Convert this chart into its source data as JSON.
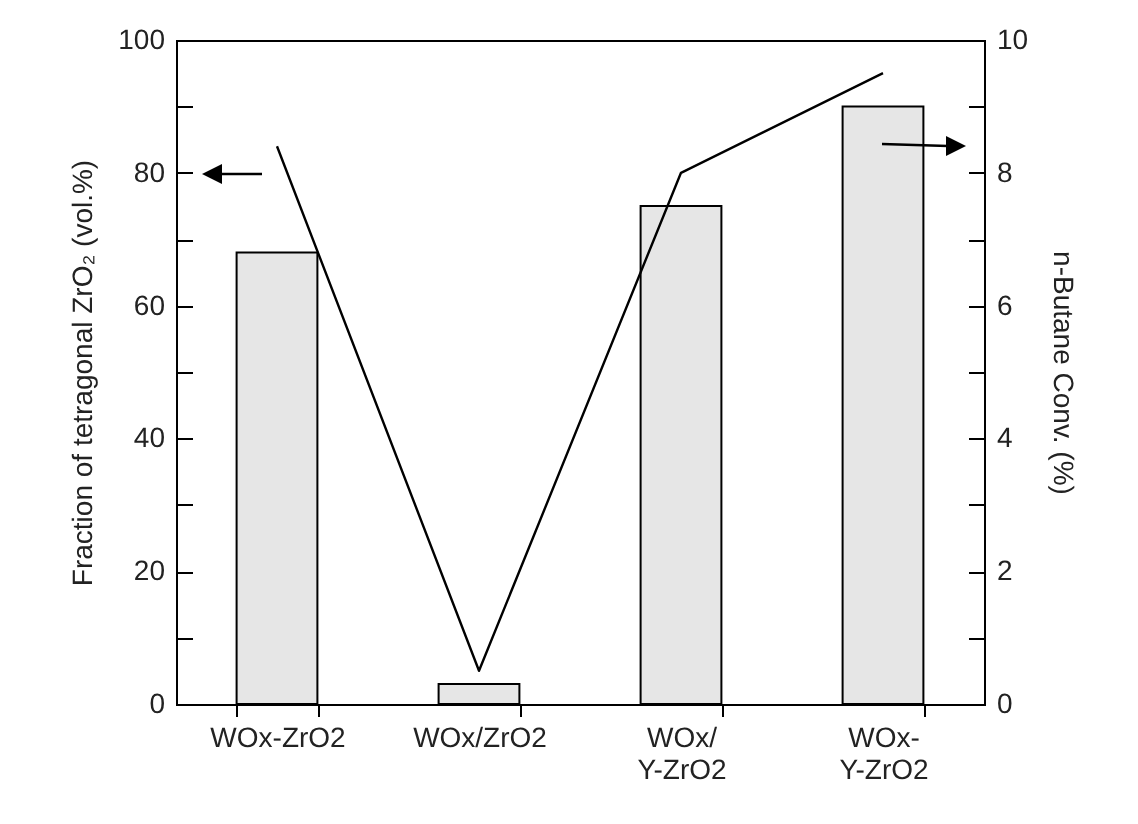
{
  "chart_data": {
    "type": "bar",
    "categories": [
      "WOx-ZrO2",
      "WOx/ZrO2",
      "WOx/\nY-ZrO2",
      "WOx-\nY-ZrO2"
    ],
    "series": [
      {
        "color": "#e6e6e6",
        "values": [
          68,
          3,
          75,
          90
        ]
      },
      {
        "type": "line",
        "axis": "y2",
        "color": "#000000",
        "values": [
          8.4,
          0.5,
          8.0,
          9.5
        ]
      }
    ],
    "ylabel": "Fraction of tetragonal ZrO₂ (vol.%)",
    "y2label": "n-Butane Conv. (%)",
    "ylim": [
      0,
      100
    ],
    "yticks": [
      0,
      {
        "value": 10,
        "label": null
      },
      20,
      {
        "value": 30,
        "label": null
      },
      40,
      {
        "value": 50,
        "label": null
      },
      60,
      {
        "value": 70,
        "label": null
      },
      80,
      {
        "value": 90,
        "label": null
      },
      100
    ],
    "y2lim": [
      0,
      10
    ],
    "y2ticks": [
      0,
      {
        "value": 1,
        "label": null
      },
      2,
      {
        "value": 3,
        "label": null
      },
      4,
      {
        "value": 5,
        "label": null
      },
      6,
      {
        "value": 7,
        "label": null
      },
      8,
      {
        "value": 9,
        "label": null
      },
      10
    ]
  }
}
